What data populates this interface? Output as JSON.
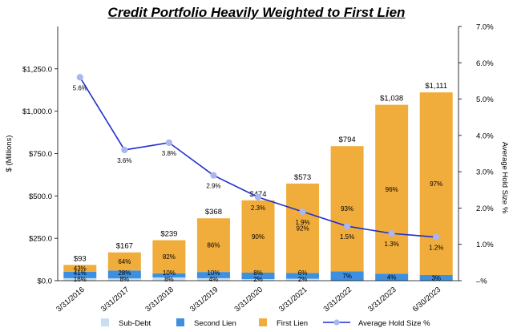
{
  "chart_data": {
    "type": "bar",
    "title": "Credit Portfolio Heavily Weighted to First Lien",
    "ylabel": "$ (Millions)",
    "y2label": "Average Hold Size %",
    "ylim": [
      0,
      1500
    ],
    "y2lim": [
      0,
      7
    ],
    "yticks": [
      "$0.0",
      "$250.0",
      "$500.0",
      "$750.0",
      "$1,000.0",
      "$1,250.0"
    ],
    "y2ticks": [
      "–%",
      "1.0%",
      "2.0%",
      "3.0%",
      "4.0%",
      "5.0%",
      "6.0%",
      "7.0%"
    ],
    "categories": [
      "3/31/2016",
      "3/31/2017",
      "3/31/2018",
      "3/31/2019",
      "3/31/2020",
      "3/31/2021",
      "3/31/2022",
      "3/31/2023",
      "6/30/2023"
    ],
    "totals": [
      93,
      167,
      239,
      368,
      474,
      573,
      794,
      1038,
      1111
    ],
    "total_labels": [
      "$93",
      "$167",
      "$239",
      "$368",
      "$474",
      "$573",
      "$794",
      "$1,038",
      "$1,111"
    ],
    "series": [
      {
        "name": "Sub-Debt",
        "color": "#c9def3",
        "values": [
          16,
          8,
          8,
          4,
          2,
          2,
          0,
          0,
          0
        ],
        "labels": [
          "16%",
          "8%",
          "8%",
          "4%",
          "2%",
          "2%",
          "",
          "",
          ""
        ]
      },
      {
        "name": "Second Lien",
        "color": "#3d8fe0",
        "values": [
          41,
          28,
          10,
          10,
          8,
          6,
          7,
          4,
          3
        ],
        "labels": [
          "41%",
          "28%",
          "10%",
          "10%",
          "8%",
          "6%",
          "7%",
          "4%",
          "3%"
        ]
      },
      {
        "name": "First Lien",
        "color": "#f0ad3c",
        "values": [
          43,
          64,
          82,
          86,
          90,
          92,
          93,
          96,
          97
        ],
        "labels": [
          "43%",
          "64%",
          "82%",
          "86%",
          "90%",
          "92%",
          "93%",
          "96%",
          "97%"
        ]
      }
    ],
    "line": {
      "name": "Average Hold Size %",
      "color": "#1f2fcf",
      "marker": "#aab6ee",
      "values": [
        5.6,
        3.6,
        3.8,
        2.9,
        2.3,
        1.9,
        1.5,
        1.3,
        1.2
      ],
      "labels": [
        "5.6%",
        "3.6%",
        "3.8%",
        "2.9%",
        "2.3%",
        "1.9%",
        "1.5%",
        "1.3%",
        "1.2%"
      ]
    },
    "legend": [
      "Sub-Debt",
      "Second Lien",
      "First Lien",
      "Average Hold Size %"
    ]
  }
}
